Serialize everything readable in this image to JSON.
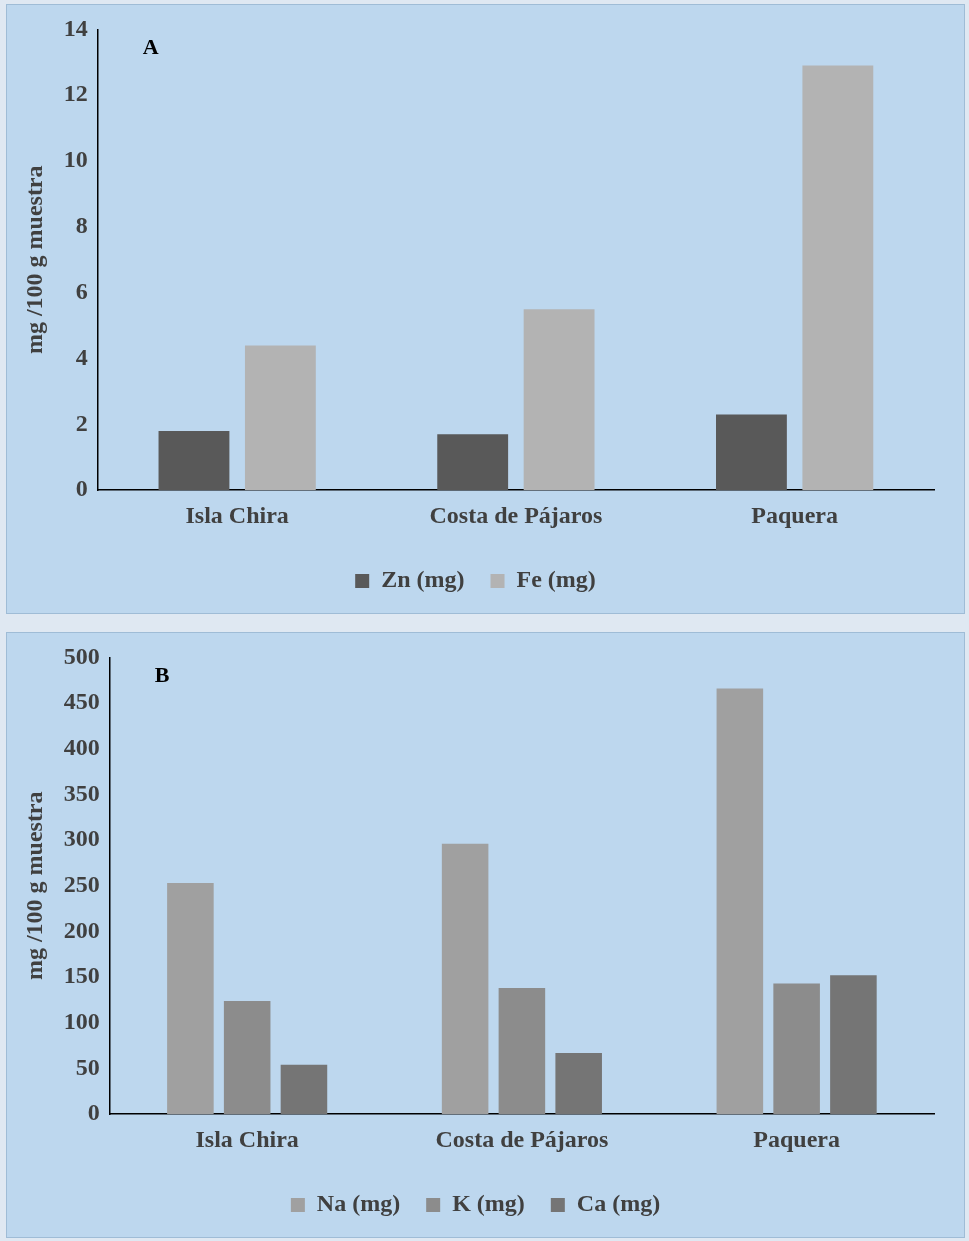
{
  "chart_data": [
    {
      "type": "bar",
      "ylabel": "mg /100 g muestra",
      "annotations": [
        "A"
      ],
      "categories": [
        "Isla Chira",
        "Costa de Pájaros",
        "Paquera"
      ],
      "series": [
        {
          "name": "Zn (mg)",
          "color": "#595959",
          "values": [
            1.8,
            1.7,
            2.3
          ]
        },
        {
          "name": "Fe (mg)",
          "color": "#b3b3b3",
          "values": [
            4.4,
            5.5,
            12.9
          ]
        }
      ],
      "ylim": [
        0,
        14
      ],
      "yticks": [
        0,
        2,
        4,
        6,
        8,
        10,
        12,
        14
      ],
      "grid": false,
      "legend": "bottom"
    },
    {
      "type": "bar",
      "ylabel": "mg /100 g muestra",
      "annotations": [
        "B"
      ],
      "categories": [
        "Isla Chira",
        "Costa de Pájaros",
        "Paquera"
      ],
      "series": [
        {
          "name": "Na (mg)",
          "color": "#a0a0a0",
          "values": [
            253,
            296,
            466
          ]
        },
        {
          "name": "K (mg)",
          "color": "#8c8c8c",
          "values": [
            124,
            138,
            143
          ]
        },
        {
          "name": "Ca (mg)",
          "color": "#757575",
          "values": [
            54,
            67,
            152
          ]
        }
      ],
      "ylim": [
        0,
        500
      ],
      "yticks": [
        0,
        50,
        100,
        150,
        200,
        250,
        300,
        350,
        400,
        450,
        500
      ],
      "grid": false,
      "legend": "bottom"
    }
  ]
}
